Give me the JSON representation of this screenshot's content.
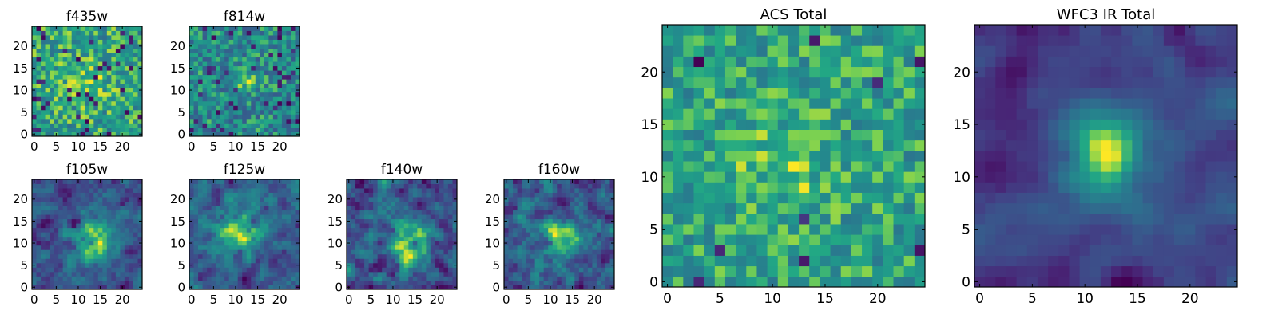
{
  "figure": {
    "colormap": "viridis",
    "colors": {
      "low": "#440154",
      "mid": "#21918c",
      "high": "#fde725",
      "frame": "#000000"
    }
  },
  "chart_data": [
    {
      "type": "heatmap",
      "title": "f435w",
      "grid": [
        25,
        25
      ],
      "xlim": [
        -0.5,
        24.5
      ],
      "ylim": [
        -0.5,
        24.5
      ],
      "xticks": [
        0,
        5,
        10,
        15,
        20
      ],
      "yticks": [
        0,
        5,
        10,
        15,
        20
      ],
      "seed": 11,
      "noise": 0.24,
      "peak": 0.12,
      "center": [
        12,
        12
      ],
      "sigma": 3.5,
      "dark_dots": 0.06,
      "smooth": 0,
      "base": 0.7
    },
    {
      "type": "heatmap",
      "title": "f814w",
      "grid": [
        25,
        25
      ],
      "xlim": [
        -0.5,
        24.5
      ],
      "ylim": [
        -0.5,
        24.5
      ],
      "xticks": [
        0,
        5,
        10,
        15,
        20
      ],
      "yticks": [
        0,
        5,
        10,
        15,
        20
      ],
      "seed": 23,
      "noise": 0.24,
      "peak": 0.25,
      "center": [
        12,
        12
      ],
      "sigma": 2.0,
      "dark_dots": 0.07,
      "smooth": 0,
      "base": 0.58
    },
    {
      "type": "heatmap",
      "title": "f105w",
      "grid": [
        25,
        25
      ],
      "xlim": [
        -0.5,
        24.5
      ],
      "ylim": [
        -0.5,
        24.5
      ],
      "xticks": [
        0,
        5,
        10,
        15,
        20
      ],
      "yticks": [
        0,
        5,
        10,
        15,
        20
      ],
      "seed": 37,
      "noise": 0.26,
      "peak": 0.4,
      "center": [
        13,
        11
      ],
      "sigma": 3.2,
      "dark_dots": 0.03,
      "smooth": 1,
      "base": 0.52
    },
    {
      "type": "heatmap",
      "title": "f125w",
      "grid": [
        25,
        25
      ],
      "xlim": [
        -0.5,
        24.5
      ],
      "ylim": [
        -0.5,
        24.5
      ],
      "xticks": [
        0,
        5,
        10,
        15,
        20
      ],
      "yticks": [
        0,
        5,
        10,
        15,
        20
      ],
      "seed": 41,
      "noise": 0.26,
      "peak": 0.38,
      "center": [
        11,
        13
      ],
      "sigma": 3.5,
      "dark_dots": 0.03,
      "smooth": 1,
      "base": 0.55
    },
    {
      "type": "heatmap",
      "title": "f140w",
      "grid": [
        25,
        25
      ],
      "xlim": [
        -0.5,
        24.5
      ],
      "ylim": [
        -0.5,
        24.5
      ],
      "xticks": [
        0,
        5,
        10,
        15,
        20
      ],
      "yticks": [
        0,
        5,
        10,
        15,
        20
      ],
      "seed": 53,
      "noise": 0.3,
      "peak": 0.36,
      "center": [
        14,
        10
      ],
      "sigma": 3.4,
      "dark_dots": 0.04,
      "smooth": 1,
      "base": 0.5
    },
    {
      "type": "heatmap",
      "title": "f160w",
      "grid": [
        25,
        25
      ],
      "xlim": [
        -0.5,
        24.5
      ],
      "ylim": [
        -0.5,
        24.5
      ],
      "xticks": [
        0,
        5,
        10,
        15,
        20
      ],
      "yticks": [
        0,
        5,
        10,
        15,
        20
      ],
      "seed": 67,
      "noise": 0.28,
      "peak": 0.4,
      "center": [
        12,
        11
      ],
      "sigma": 2.6,
      "dark_dots": 0.04,
      "smooth": 1,
      "base": 0.48
    },
    {
      "type": "heatmap",
      "title": "ACS Total",
      "grid": [
        25,
        25
      ],
      "xlim": [
        -0.5,
        24.5
      ],
      "ylim": [
        -0.5,
        24.5
      ],
      "xticks": [
        0,
        5,
        10,
        15,
        20
      ],
      "yticks": [
        0,
        5,
        10,
        15,
        20
      ],
      "seed": 79,
      "noise": 0.2,
      "peak": 0.16,
      "center": [
        11,
        11
      ],
      "sigma": 3.0,
      "dark_dots": 0.02,
      "smooth": 0,
      "base": 0.68
    },
    {
      "type": "heatmap",
      "title": "WFC3 IR Total",
      "grid": [
        25,
        25
      ],
      "xlim": [
        -0.5,
        24.5
      ],
      "ylim": [
        -0.5,
        24.5
      ],
      "xticks": [
        0,
        5,
        10,
        15,
        20
      ],
      "yticks": [
        0,
        5,
        10,
        15,
        20
      ],
      "seed": 97,
      "noise": 0.2,
      "peak": 0.5,
      "center": [
        12,
        12
      ],
      "sigma": 2.6,
      "dark_dots": 0.02,
      "smooth": 2,
      "base": 0.48
    }
  ]
}
